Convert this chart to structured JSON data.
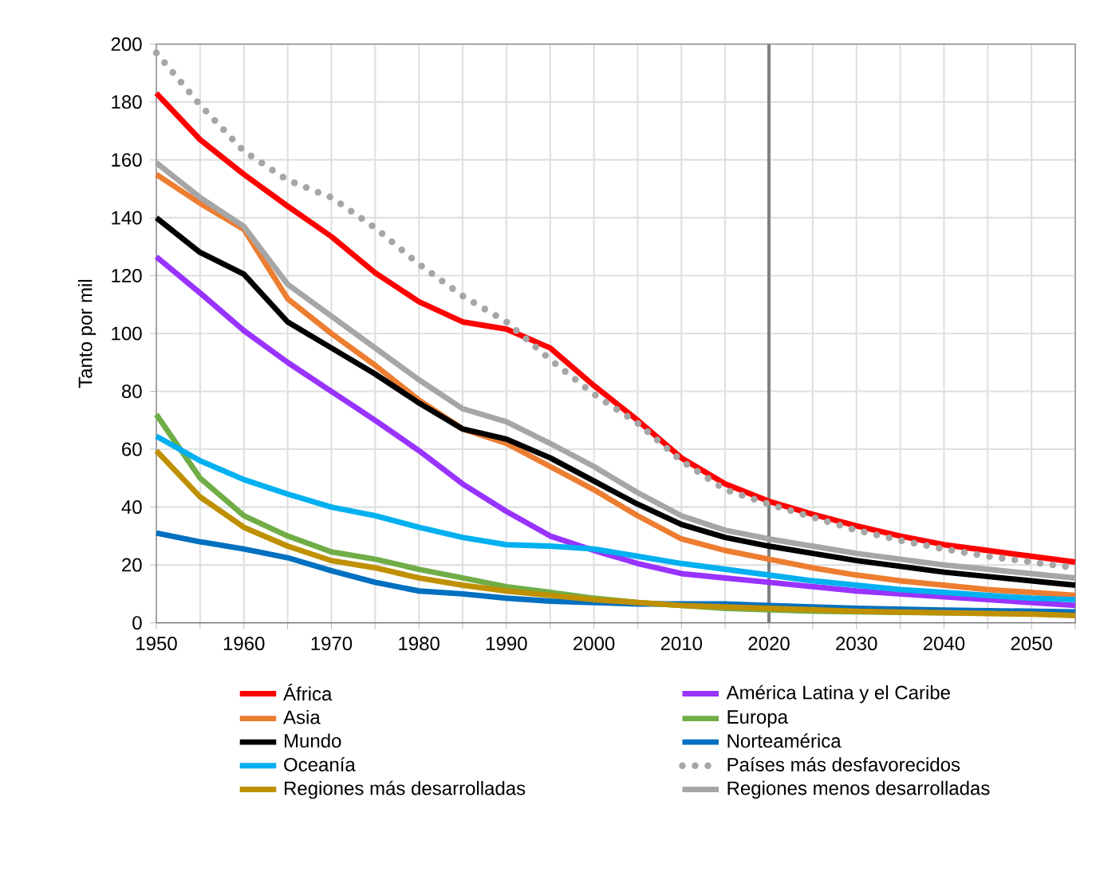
{
  "chart_data": {
    "type": "line",
    "ylabel": "Tanto por mil",
    "x": [
      1950,
      1955,
      1960,
      1965,
      1970,
      1975,
      1980,
      1985,
      1990,
      1995,
      2000,
      2005,
      2010,
      2015,
      2020,
      2025,
      2030,
      2035,
      2040,
      2045,
      2050,
      2055
    ],
    "xlim": [
      1950,
      2055
    ],
    "xticks": [
      1950,
      {
        "value": 1955,
        "label": null
      },
      1960,
      {
        "value": 1965,
        "label": null
      },
      1970,
      {
        "value": 1975,
        "label": null
      },
      1980,
      {
        "value": 1985,
        "label": null
      },
      1990,
      {
        "value": 1995,
        "label": null
      },
      2000,
      {
        "value": 2005,
        "label": null
      },
      2010,
      {
        "value": 2015,
        "label": null
      },
      2020,
      {
        "value": 2025,
        "label": null
      },
      2030,
      {
        "value": 2035,
        "label": null
      },
      2040,
      {
        "value": 2045,
        "label": null
      },
      2050,
      {
        "value": 2055,
        "label": null
      }
    ],
    "ylim": [
      0,
      200
    ],
    "yticks": [
      0,
      20,
      40,
      60,
      80,
      100,
      120,
      140,
      160,
      180,
      200
    ],
    "grid": true,
    "legend": "bottom",
    "line_style": "solid",
    "marker": "none",
    "ref_lines": [
      {
        "axis": "x",
        "value": 2020,
        "color": "#808080"
      }
    ],
    "series": [
      {
        "name": "África",
        "color": "#ff0000",
        "values": [
          183,
          167,
          155,
          144,
          133.5,
          121,
          111,
          104,
          101.5,
          95,
          82,
          70,
          57,
          48,
          42,
          37.5,
          33.5,
          30,
          27,
          25,
          23,
          21
        ]
      },
      {
        "name": "América Latina y el Caribe",
        "color": "#9933ff",
        "values": [
          126.5,
          114,
          101,
          90,
          80,
          70,
          59.5,
          48,
          38.5,
          30,
          25,
          20.5,
          17,
          15.5,
          14,
          12.5,
          11,
          10,
          9,
          8,
          7,
          6
        ]
      },
      {
        "name": "Asia",
        "color": "#ed7d31",
        "values": [
          155,
          145,
          136,
          112,
          100,
          89,
          77,
          67,
          62,
          54,
          46,
          37,
          29,
          25,
          22,
          19,
          16.5,
          14.5,
          13,
          11.5,
          10.5,
          9.5
        ]
      },
      {
        "name": "Europa",
        "color": "#70ad47",
        "values": [
          72,
          50,
          37,
          30,
          24.5,
          22,
          18.5,
          15.5,
          12.5,
          10.5,
          8.5,
          7,
          6,
          5,
          4.5,
          4,
          3.8,
          3.6,
          3.5,
          3.4,
          3.3,
          3.2
        ]
      },
      {
        "name": "Mundo",
        "color": "#000000",
        "values": [
          140,
          128,
          120.5,
          104,
          95,
          86,
          76,
          67,
          63.5,
          57,
          49,
          41,
          34,
          29.5,
          26.5,
          24,
          21.5,
          19.5,
          17.5,
          16,
          14.5,
          13
        ]
      },
      {
        "name": "Norteamérica",
        "color": "#0070c0",
        "values": [
          31,
          28,
          25.5,
          22.5,
          18,
          14,
          11,
          10,
          8.5,
          7.5,
          7,
          6.5,
          6.5,
          6.5,
          6,
          5.5,
          5,
          4.7,
          4.4,
          4.2,
          4,
          3.8
        ]
      },
      {
        "name": "Oceanía",
        "color": "#00b0f0",
        "values": [
          64.5,
          56,
          49.5,
          44.5,
          40,
          37,
          33,
          29.5,
          27,
          26.5,
          25.5,
          23,
          20.5,
          18.5,
          16.5,
          14.5,
          13,
          11.5,
          10.5,
          9.5,
          8.5,
          8
        ]
      },
      {
        "name": "Países más desfavorecidos",
        "color": "#a6a6a6",
        "line_style": "dotted",
        "values": [
          197,
          179,
          163,
          153,
          147,
          136.5,
          124,
          113,
          104,
          91,
          79,
          69,
          56,
          46,
          41,
          36.5,
          32,
          28.5,
          25.5,
          23,
          21,
          19
        ]
      },
      {
        "name": "Regiones más desarrolladas",
        "color": "#bf9000",
        "values": [
          59.5,
          43.5,
          33,
          26.5,
          21.5,
          19,
          15.5,
          13,
          11,
          9.5,
          8,
          7,
          6,
          5.5,
          5,
          4.5,
          4,
          3.7,
          3.5,
          3.2,
          3,
          2.5
        ]
      },
      {
        "name": "Regiones menos desarrolladas",
        "color": "#a6a6a6",
        "values": [
          159,
          147,
          137,
          117,
          106,
          95,
          84,
          74,
          69.5,
          62,
          54,
          45,
          37,
          32,
          29,
          26.5,
          24,
          22,
          20,
          18.5,
          17,
          15.5
        ]
      }
    ]
  }
}
